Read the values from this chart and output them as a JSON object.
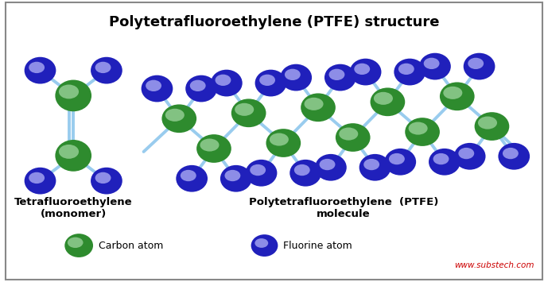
{
  "title": "Polytetrafluoroethylene (PTFE) structure",
  "title_fontsize": 13,
  "bg_color": "#ffffff",
  "border_color": "#888888",
  "carbon_color": "#2e8b2e",
  "carbon_highlight": "#c8f0c8",
  "fluorine_color": "#2020bb",
  "fluorine_highlight": "#c8c8ff",
  "bond_color": "#99ccee",
  "bond_lw": 2.8,
  "monomer_label": "Tetrafluoroethylene\n(monomer)",
  "polymer_label": "Polytetrafluoroethylene  (PTFE)\nmolecule",
  "carbon_legend_label": "Carbon atom",
  "fluorine_legend_label": "Fluorine atom",
  "watermark": "www.substech.com",
  "watermark_color": "#cc0000"
}
